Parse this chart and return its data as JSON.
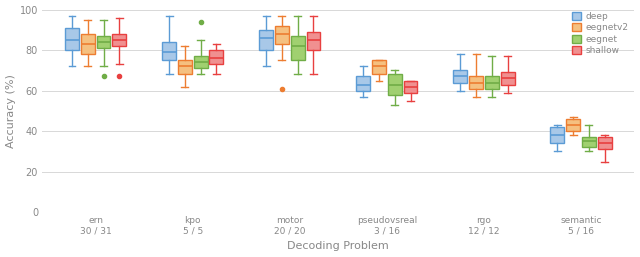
{
  "categories_line1": [
    "ern",
    "kpo",
    "motor",
    "pseudovsreal",
    "rgo",
    "semantic"
  ],
  "categories_line2": [
    "30 / 31",
    "5 / 5",
    "20 / 20",
    "3 / 16",
    "12 / 12",
    "5 / 16"
  ],
  "models": [
    "deep",
    "eegnetv2",
    "eegnet",
    "shallow"
  ],
  "colors": [
    "#5b9bd5",
    "#ed7d31",
    "#70ad47",
    "#e84040"
  ],
  "face_colors": [
    "#a8c8e8",
    "#f5c080",
    "#a0d070",
    "#f09090"
  ],
  "ylim": [
    0,
    100
  ],
  "yticks": [
    0,
    20,
    40,
    60,
    80,
    100
  ],
  "grid_color": "#d8d8d8",
  "background_color": "#ffffff",
  "xlabel": "Decoding Problem",
  "ylabel": "Accuracy (%)",
  "legend_labels": [
    "deep",
    "eegnetv2",
    "eegnet",
    "shallow"
  ],
  "box_data": {
    "ern": {
      "deep": {
        "whislo": 72,
        "q1": 80,
        "med": 85,
        "q3": 91,
        "whishi": 97,
        "fliers": []
      },
      "eegnetv2": {
        "whislo": 72,
        "q1": 78,
        "med": 83,
        "q3": 88,
        "whishi": 95,
        "fliers": []
      },
      "eegnet": {
        "whislo": 72,
        "q1": 81,
        "med": 84,
        "q3": 87,
        "whishi": 95,
        "fliers": [
          67
        ]
      },
      "shallow": {
        "whislo": 73,
        "q1": 82,
        "med": 85,
        "q3": 88,
        "whishi": 96,
        "fliers": [
          67
        ]
      }
    },
    "kpo": {
      "deep": {
        "whislo": 68,
        "q1": 75,
        "med": 79,
        "q3": 84,
        "whishi": 97,
        "fliers": []
      },
      "eegnetv2": {
        "whislo": 62,
        "q1": 68,
        "med": 72,
        "q3": 75,
        "whishi": 82,
        "fliers": []
      },
      "eegnet": {
        "whislo": 68,
        "q1": 71,
        "med": 74,
        "q3": 77,
        "whishi": 85,
        "fliers": [
          94
        ]
      },
      "shallow": {
        "whislo": 68,
        "q1": 73,
        "med": 76,
        "q3": 80,
        "whishi": 83,
        "fliers": []
      }
    },
    "motor": {
      "deep": {
        "whislo": 72,
        "q1": 80,
        "med": 86,
        "q3": 90,
        "whishi": 97,
        "fliers": []
      },
      "eegnetv2": {
        "whislo": 75,
        "q1": 83,
        "med": 88,
        "q3": 92,
        "whishi": 97,
        "fliers": [
          61
        ]
      },
      "eegnet": {
        "whislo": 68,
        "q1": 75,
        "med": 82,
        "q3": 87,
        "whishi": 97,
        "fliers": []
      },
      "shallow": {
        "whislo": 68,
        "q1": 80,
        "med": 85,
        "q3": 89,
        "whishi": 97,
        "fliers": []
      }
    },
    "pseudovsreal": {
      "deep": {
        "whislo": 57,
        "q1": 60,
        "med": 63,
        "q3": 67,
        "whishi": 72,
        "fliers": []
      },
      "eegnetv2": {
        "whislo": 65,
        "q1": 68,
        "med": 72,
        "q3": 75,
        "whishi": 75,
        "fliers": []
      },
      "eegnet": {
        "whislo": 53,
        "q1": 58,
        "med": 63,
        "q3": 68,
        "whishi": 70,
        "fliers": []
      },
      "shallow": {
        "whislo": 55,
        "q1": 59,
        "med": 62,
        "q3": 65,
        "whishi": 65,
        "fliers": []
      }
    },
    "rgo": {
      "deep": {
        "whislo": 60,
        "q1": 64,
        "med": 67,
        "q3": 70,
        "whishi": 78,
        "fliers": []
      },
      "eegnetv2": {
        "whislo": 57,
        "q1": 61,
        "med": 64,
        "q3": 67,
        "whishi": 78,
        "fliers": []
      },
      "eegnet": {
        "whislo": 57,
        "q1": 61,
        "med": 64,
        "q3": 67,
        "whishi": 77,
        "fliers": []
      },
      "shallow": {
        "whislo": 59,
        "q1": 63,
        "med": 66,
        "q3": 69,
        "whishi": 77,
        "fliers": []
      }
    },
    "semantic": {
      "deep": {
        "whislo": 30,
        "q1": 34,
        "med": 38,
        "q3": 42,
        "whishi": 43,
        "fliers": []
      },
      "eegnetv2": {
        "whislo": 38,
        "q1": 40,
        "med": 43,
        "q3": 46,
        "whishi": 47,
        "fliers": []
      },
      "eegnet": {
        "whislo": 30,
        "q1": 32,
        "med": 35,
        "q3": 37,
        "whishi": 43,
        "fliers": []
      },
      "shallow": {
        "whislo": 25,
        "q1": 31,
        "med": 34,
        "q3": 37,
        "whishi": 38,
        "fliers": []
      }
    }
  }
}
